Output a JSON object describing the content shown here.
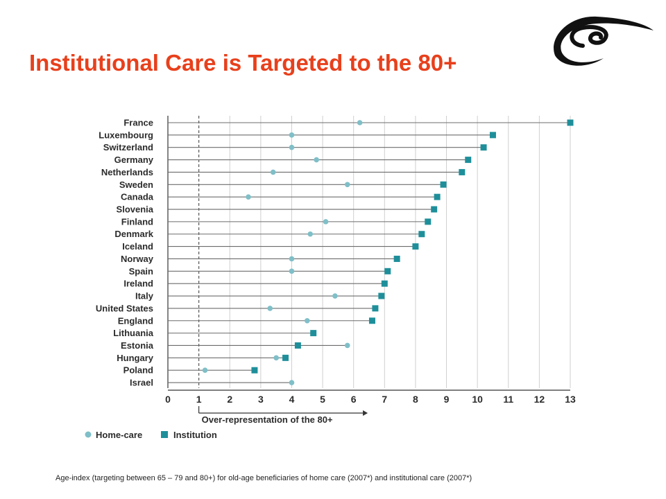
{
  "page": {
    "title": "Institutional Care is Targeted to the 80+",
    "footnote": "Age-index (targeting between 65 – 79 and 80+) for old-age beneficiaries of home care (2007*) and institutional care (2007*)",
    "logo_icon": "council-of-europe-swirl-icon"
  },
  "chart_data": {
    "type": "scatter",
    "subtype": "dot-range",
    "title": "",
    "xlabel": "Over-representation of the 80+",
    "ylabel": "",
    "xlim": [
      0,
      13
    ],
    "xticks": [
      0,
      1,
      2,
      3,
      4,
      5,
      6,
      7,
      8,
      9,
      10,
      11,
      12,
      13
    ],
    "grid": "vertical-dashed",
    "reference_line": 1,
    "legend_placement": "bottom-left",
    "categories": [
      "France",
      "Luxembourg",
      "Switzerland",
      "Germany",
      "Netherlands",
      "Sweden",
      "Canada",
      "Slovenia",
      "Finland",
      "Denmark",
      "Iceland",
      "Norway",
      "Spain",
      "Ireland",
      "Italy",
      "United States",
      "England",
      "Lithuania",
      "Estonia",
      "Hungary",
      "Poland",
      "Israel"
    ],
    "series": [
      {
        "name": "Home-care",
        "marker": "circle",
        "color": "#7fbfc8",
        "values": [
          6.2,
          4.0,
          4.0,
          4.8,
          3.4,
          5.8,
          2.6,
          null,
          5.1,
          4.6,
          null,
          4.0,
          4.0,
          null,
          5.4,
          3.3,
          4.5,
          null,
          5.8,
          3.5,
          1.2,
          4.0
        ]
      },
      {
        "name": "Institution",
        "marker": "square",
        "color": "#1e8f9a",
        "values": [
          13.0,
          10.5,
          10.2,
          9.7,
          9.5,
          8.9,
          8.7,
          8.6,
          8.4,
          8.2,
          8.0,
          7.4,
          7.1,
          7.0,
          6.9,
          6.7,
          6.6,
          4.7,
          4.2,
          3.8,
          2.8,
          null
        ]
      }
    ],
    "colors": {
      "line": "#6b6b6b",
      "axis": "#333333",
      "grid": "#aaaaaa",
      "label": "#2b2b2b"
    }
  }
}
